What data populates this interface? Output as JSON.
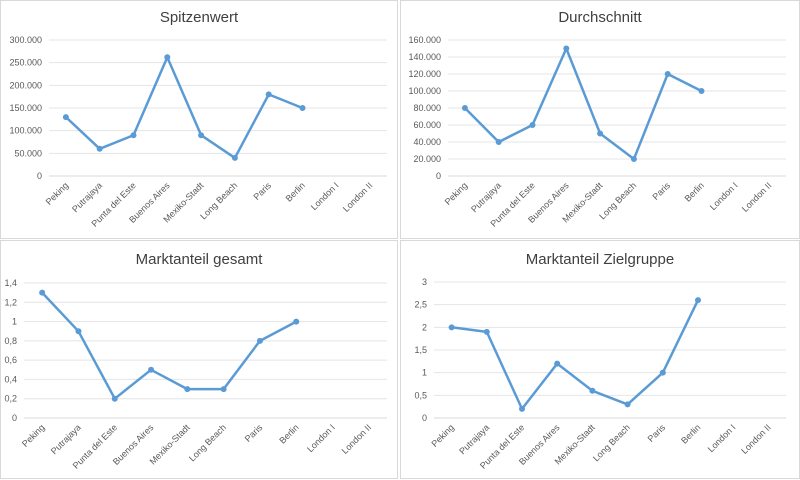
{
  "chart_data": [
    {
      "type": "line",
      "title": "Spitzenwert",
      "categories": [
        "Peking",
        "Putrajaya",
        "Punta del Este",
        "Buenos Aires",
        "Mexiko-Stadt",
        "Long Beach",
        "Paris",
        "Berlin",
        "London I",
        "London II"
      ],
      "values": [
        130000,
        60000,
        90000,
        262000,
        90000,
        40000,
        180000,
        150000,
        null,
        null
      ],
      "ylim": [
        0,
        300000
      ],
      "yticks": [
        "0",
        "50.000",
        "100.000",
        "150.000",
        "200.000",
        "250.000",
        "300.000"
      ],
      "grid": true,
      "color": "#5b9bd5"
    },
    {
      "type": "line",
      "title": "Durchschnitt",
      "categories": [
        "Peking",
        "Putrajaya",
        "Punta del Este",
        "Buenos Aires",
        "Mexiko-Stadt",
        "Long Beach",
        "Paris",
        "Berlin",
        "London I",
        "London II"
      ],
      "values": [
        80000,
        40000,
        60000,
        150000,
        50000,
        20000,
        120000,
        100000,
        null,
        null
      ],
      "ylim": [
        0,
        160000
      ],
      "yticks": [
        "0",
        "20.000",
        "40.000",
        "60.000",
        "80.000",
        "100.000",
        "120.000",
        "140.000",
        "160.000"
      ],
      "grid": true,
      "color": "#5b9bd5"
    },
    {
      "type": "line",
      "title": "Marktanteil gesamt",
      "categories": [
        "Peking",
        "Putrajaya",
        "Punta del Este",
        "Buenos Aires",
        "Mexiko-Stadt",
        "Long Beach",
        "Paris",
        "Berlin",
        "London I",
        "London II"
      ],
      "values": [
        1.3,
        0.9,
        0.2,
        0.5,
        0.3,
        0.3,
        0.8,
        1.0,
        null,
        null
      ],
      "ylim": [
        0,
        1.4
      ],
      "yticks": [
        "0",
        "0,2",
        "0,4",
        "0,6",
        "0,8",
        "1",
        "1,2",
        "1,4"
      ],
      "grid": true,
      "color": "#5b9bd5"
    },
    {
      "type": "line",
      "title": "Marktanteil Zielgruppe",
      "categories": [
        "Peking",
        "Putrajaya",
        "Punta del Este",
        "Buenos Aires",
        "Mexiko-Stadt",
        "Long Beach",
        "Paris",
        "Berlin",
        "London I",
        "London II"
      ],
      "values": [
        2.0,
        1.9,
        0.2,
        1.2,
        0.6,
        0.3,
        1.0,
        2.6,
        null,
        null
      ],
      "ylim": [
        0,
        3
      ],
      "yticks": [
        "0",
        "0,5",
        "1",
        "1,5",
        "2",
        "2,5",
        "3"
      ],
      "grid": true,
      "color": "#5b9bd5"
    }
  ]
}
